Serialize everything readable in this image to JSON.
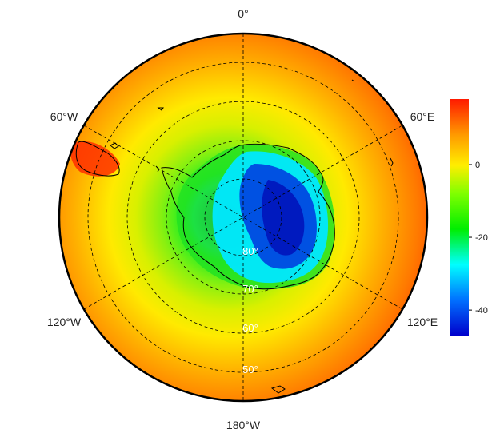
{
  "map": {
    "projection": "south-polar-stereographic",
    "lon_labels": {
      "top": "0°",
      "upper_left": "60°W",
      "upper_right": "60°E",
      "lower_left": "120°W",
      "lower_right": "120°E",
      "bottom": "180°W"
    },
    "lat_labels": [
      "80°",
      "70°",
      "60°",
      "50°"
    ],
    "gridlines": "dashed",
    "coastlines": true
  },
  "colorbar": {
    "ticks": [
      "0",
      "-20",
      "-40"
    ],
    "tick_values": [
      0,
      -20,
      -40
    ],
    "range": [
      -47,
      18
    ],
    "colors": [
      "#ff1a00",
      "#ff8c00",
      "#ffee00",
      "#7fff00",
      "#00ee00",
      "#00ffff",
      "#0090ff",
      "#0000cc"
    ]
  }
}
